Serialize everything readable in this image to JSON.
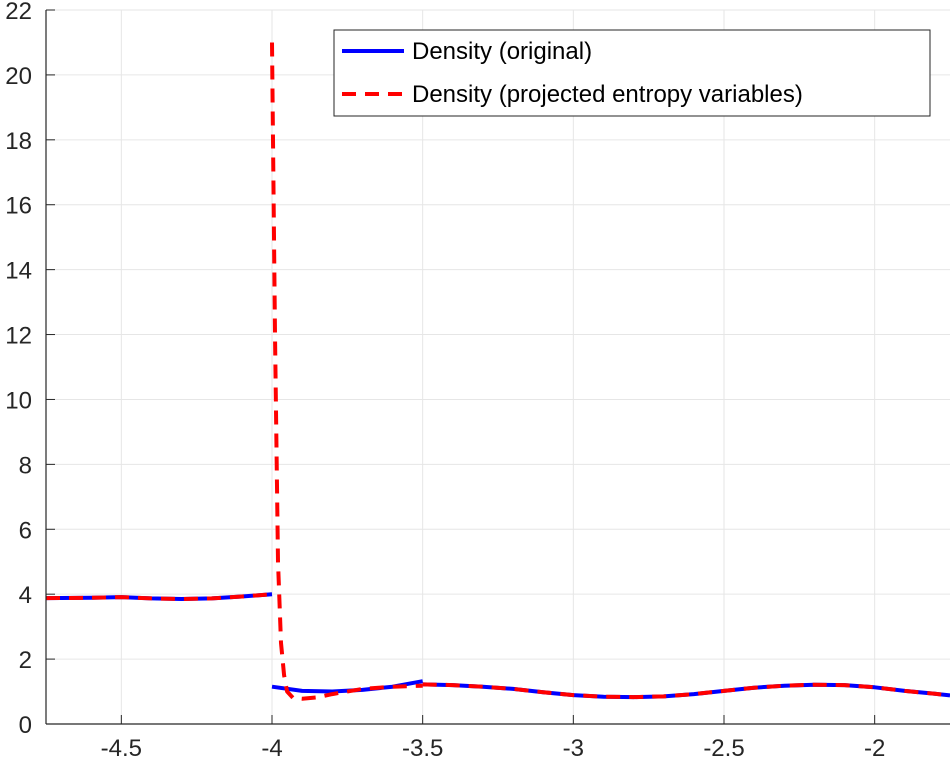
{
  "chart_data": {
    "type": "line",
    "title": "",
    "xlabel": "",
    "ylabel": "",
    "xlim": [
      -4.75,
      -1.75
    ],
    "ylim": [
      0,
      22
    ],
    "xticks": [
      -4.5,
      -4,
      -3.5,
      -3,
      -2.5,
      -2
    ],
    "xtick_labels": [
      "-4.5",
      "-4",
      "-3.5",
      "-3",
      "-2.5",
      "-2"
    ],
    "yticks": [
      0,
      2,
      4,
      6,
      8,
      10,
      12,
      14,
      16,
      18,
      20,
      22
    ],
    "ytick_labels": [
      "0",
      "2",
      "4",
      "6",
      "8",
      "10",
      "12",
      "14",
      "16",
      "18",
      "20",
      "22"
    ],
    "grid": true,
    "legend_position": "top-right",
    "series": [
      {
        "name": "Density (original)",
        "color": "#0000ff",
        "style": "solid",
        "segments": [
          {
            "x": [
              -4.75,
              -4.6,
              -4.5,
              -4.4,
              -4.3,
              -4.2,
              -4.1,
              -4.0
            ],
            "y": [
              3.88,
              3.89,
              3.91,
              3.87,
              3.85,
              3.87,
              3.93,
              4.0
            ]
          },
          {
            "x": [
              -4.0,
              -3.9,
              -3.8,
              -3.7,
              -3.6,
              -3.5
            ],
            "y": [
              1.15,
              1.02,
              1.0,
              1.05,
              1.15,
              1.32
            ]
          },
          {
            "x": [
              -3.5,
              -3.4,
              -3.3,
              -3.2,
              -3.1,
              -3.0,
              -2.9,
              -2.8,
              -2.7,
              -2.6,
              -2.5,
              -2.4,
              -2.3,
              -2.2,
              -2.1,
              -2.0,
              -1.9,
              -1.8,
              -1.75
            ],
            "y": [
              1.22,
              1.2,
              1.15,
              1.08,
              0.98,
              0.89,
              0.84,
              0.83,
              0.85,
              0.92,
              1.02,
              1.12,
              1.18,
              1.21,
              1.2,
              1.13,
              1.02,
              0.93,
              0.88
            ]
          }
        ]
      },
      {
        "name": "Density (projected entropy variables)",
        "color": "#ff0000",
        "style": "dashed",
        "segments": [
          {
            "x": [
              -4.75,
              -4.6,
              -4.5,
              -4.4,
              -4.3,
              -4.2,
              -4.1,
              -4.0
            ],
            "y": [
              3.88,
              3.89,
              3.91,
              3.87,
              3.85,
              3.87,
              3.93,
              4.0
            ]
          },
          {
            "x": [
              -4.0,
              -3.99,
              -3.98,
              -3.97,
              -3.96,
              -3.95,
              -3.93,
              -3.9,
              -3.85,
              -3.8,
              -3.7,
              -3.6,
              -3.5
            ],
            "y": [
              21.0,
              12.0,
              5.0,
              2.5,
              1.5,
              1.0,
              0.8,
              0.78,
              0.82,
              0.92,
              1.08,
              1.15,
              1.18
            ]
          },
          {
            "x": [
              -3.5,
              -3.4,
              -3.3,
              -3.2,
              -3.1,
              -3.0,
              -2.9,
              -2.8,
              -2.7,
              -2.6,
              -2.5,
              -2.4,
              -2.3,
              -2.2,
              -2.1,
              -2.0,
              -1.9,
              -1.8,
              -1.75
            ],
            "y": [
              1.22,
              1.2,
              1.15,
              1.08,
              0.98,
              0.89,
              0.84,
              0.83,
              0.85,
              0.92,
              1.02,
              1.12,
              1.18,
              1.21,
              1.2,
              1.13,
              1.02,
              0.93,
              0.88
            ]
          }
        ]
      }
    ]
  }
}
